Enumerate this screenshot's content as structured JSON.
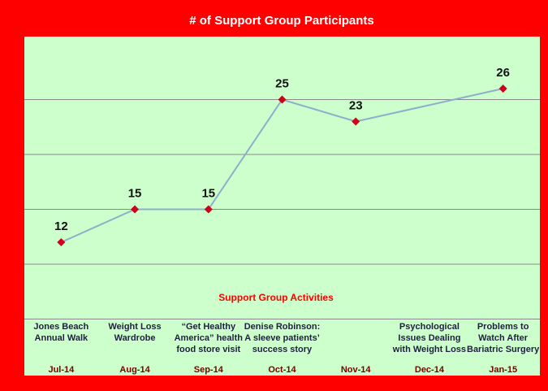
{
  "chart_data": {
    "type": "line",
    "title": "# of Support Group Participants",
    "x_axis_label": "Support Group Activities",
    "categories": [
      "Jul-14",
      "Aug-14",
      "Sep-14",
      "Oct-14",
      "Nov-14",
      "Dec-14",
      "Jan-15"
    ],
    "activities": [
      [
        "Jones Beach",
        "Annual Walk"
      ],
      [
        "Weight Loss",
        "Wardrobe"
      ],
      [
        "“Get Healthy",
        "America” health",
        "food store visit"
      ],
      [
        "Denise Robinson:",
        "A sleeve patients’",
        "success story"
      ],
      null,
      [
        "Psychological",
        "Issues Dealing",
        "with Weight Loss"
      ],
      [
        "Problems to",
        "Watch After",
        "Bariatric Surgery"
      ]
    ],
    "series": [
      {
        "name": "Participants",
        "color": "#8eafc9",
        "marker_color": "#d0001a",
        "values": [
          12,
          15,
          15,
          25,
          23,
          null,
          26
        ]
      }
    ],
    "connect_gaps": true,
    "ylim": [
      0,
      30
    ],
    "yticks": [
      5,
      10,
      15,
      20,
      25
    ],
    "grid": true
  }
}
